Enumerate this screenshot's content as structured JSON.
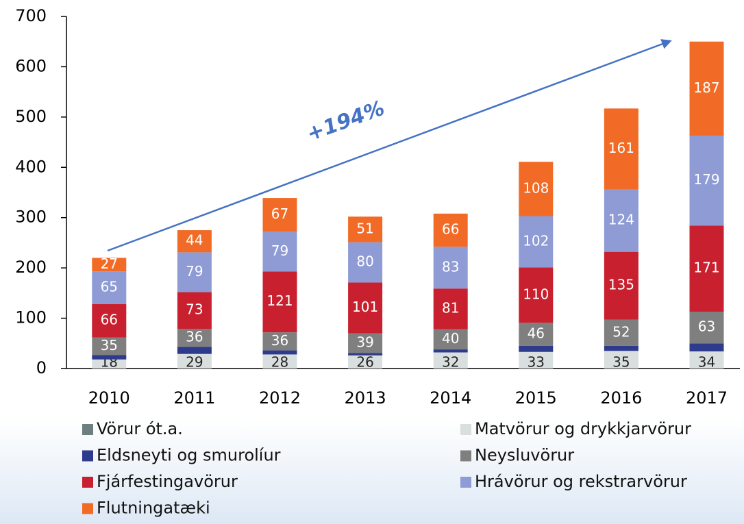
{
  "chart_data": {
    "type": "stacked-bar",
    "categories": [
      "2010",
      "2011",
      "2012",
      "2013",
      "2014",
      "2015",
      "2016",
      "2017"
    ],
    "series": [
      {
        "name": "Vörur ót.a.",
        "color": "#6d7f80",
        "values": [
          0,
          0,
          0,
          0,
          0,
          0,
          0,
          0
        ]
      },
      {
        "name": "Matvörur og drykkjarvörur",
        "color": "#d9dfde",
        "values": [
          18,
          29,
          28,
          26,
          32,
          33,
          35,
          34
        ]
      },
      {
        "name": "Eldsneyti og smurolíur",
        "color": "#2e3a8c",
        "values": [
          9,
          14,
          8,
          5,
          6,
          12,
          10,
          16
        ]
      },
      {
        "name": "Neysluvörur",
        "color": "#7f7f7f",
        "values": [
          35,
          36,
          36,
          39,
          40,
          46,
          52,
          63
        ]
      },
      {
        "name": "Fjárfestingavörur",
        "color": "#c8202e",
        "values": [
          66,
          73,
          121,
          101,
          81,
          110,
          135,
          171
        ]
      },
      {
        "name": "Hrávörur og rekstrarvörur",
        "color": "#8e9bd5",
        "values": [
          65,
          79,
          79,
          80,
          83,
          102,
          124,
          179
        ]
      },
      {
        "name": "Flutningatæki",
        "color": "#f26b26",
        "values": [
          27,
          44,
          67,
          51,
          66,
          108,
          161,
          187
        ]
      }
    ],
    "labeled_series": [
      1,
      3,
      4,
      5,
      6
    ],
    "ylim": [
      0,
      700
    ],
    "yticks": [
      0,
      100,
      200,
      300,
      400,
      500,
      600,
      700
    ],
    "grid": false,
    "annotation": "+194%",
    "annotation_color": "#4472c4"
  }
}
